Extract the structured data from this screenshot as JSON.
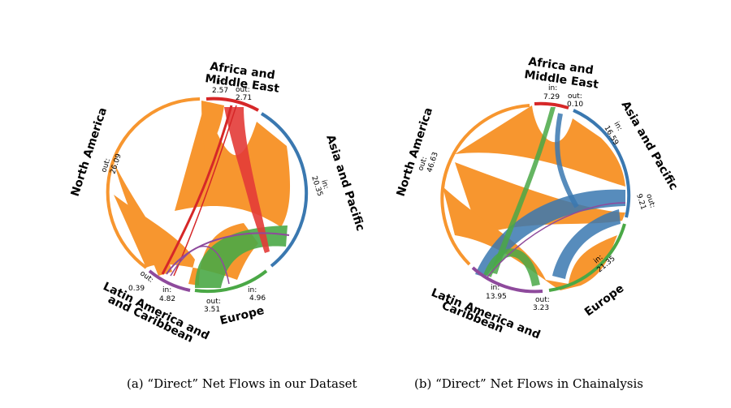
{
  "colors": {
    "north_america": "#f7962f",
    "africa_me": "#d62728",
    "asia_pacific": "#3a78b0",
    "europe": "#4aa846",
    "latam": "#8e4a9c"
  },
  "captions": {
    "a": "(a) “Direct” Net Flows in our Dataset",
    "b": "(b) “Direct” Net Flows in Chainalysis"
  },
  "diagram_a": {
    "na": {
      "name": "North America",
      "line1": "out:",
      "line2": "26.09"
    },
    "af": {
      "line_a": "Africa and",
      "line_b": "Middle East",
      "in1": "in:",
      "in2": "2.57",
      "out1": "out:",
      "out2": "2.71"
    },
    "ap": {
      "name": "Asia and Pacific",
      "in1": "in:",
      "in2": "20.35"
    },
    "eu": {
      "name": "Europe",
      "in1": "in:",
      "in2": "4.96",
      "out1": "out:",
      "out2": "3.51"
    },
    "la": {
      "line_a": "Latin America and",
      "line_b": "and Caribbean",
      "in1": "in:",
      "in2": "4.82",
      "out1": "out:",
      "out2": "0.39"
    }
  },
  "diagram_b": {
    "na": {
      "name": "North America",
      "line1": "out:",
      "line2": "46.63"
    },
    "af": {
      "line_a": "Africa and",
      "line_b": "Middle East",
      "in1": "in:",
      "in2": "7.29",
      "out1": "out:",
      "out2": "0.10"
    },
    "ap": {
      "name": "Asia and Pacific",
      "in1": "in:",
      "in2": "16.59",
      "out1": "out:",
      "out2": "9.21"
    },
    "eu": {
      "name": "Europe",
      "in1": "in:",
      "in2": "21.35"
    },
    "la": {
      "line_a": "Latin America and",
      "line_b": "Caribbean",
      "in1": "in:",
      "in2": "13.95",
      "out1": "out:",
      "out2": "3.23"
    }
  }
}
